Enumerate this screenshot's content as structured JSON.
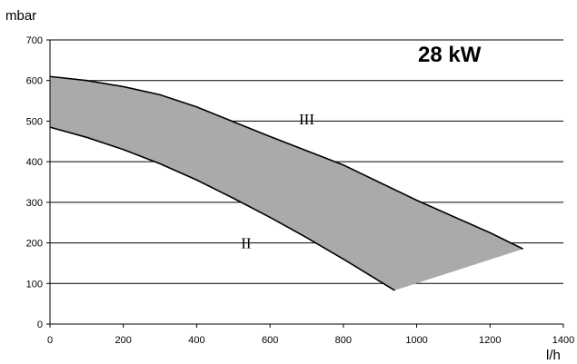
{
  "chart_data": {
    "type": "area",
    "title": "",
    "annotation": "28 kW",
    "ylabel": "mbar",
    "xlabel": "l/h",
    "xlim": [
      0,
      1400
    ],
    "ylim": [
      0,
      700
    ],
    "x_ticks": [
      0,
      200,
      400,
      600,
      800,
      1000,
      1200,
      1400
    ],
    "y_ticks": [
      0,
      100,
      200,
      300,
      400,
      500,
      600,
      700
    ],
    "grid": "horizontal",
    "fill_color": "#aaaaaa",
    "line_color": "#000000",
    "series": [
      {
        "name": "III",
        "x": [
          0,
          100,
          200,
          300,
          400,
          600,
          800,
          1000,
          1200,
          1290
        ],
        "y": [
          610,
          600,
          585,
          565,
          535,
          462,
          392,
          305,
          225,
          185
        ]
      },
      {
        "name": "II",
        "x": [
          0,
          100,
          200,
          300,
          400,
          500,
          600,
          700,
          800,
          940
        ],
        "y": [
          485,
          460,
          430,
          395,
          355,
          310,
          263,
          213,
          160,
          83
        ]
      }
    ],
    "curve_label_positions": [
      {
        "label": "III",
        "x": 700,
        "y": 505
      },
      {
        "label": "II",
        "x": 535,
        "y": 200
      }
    ]
  }
}
